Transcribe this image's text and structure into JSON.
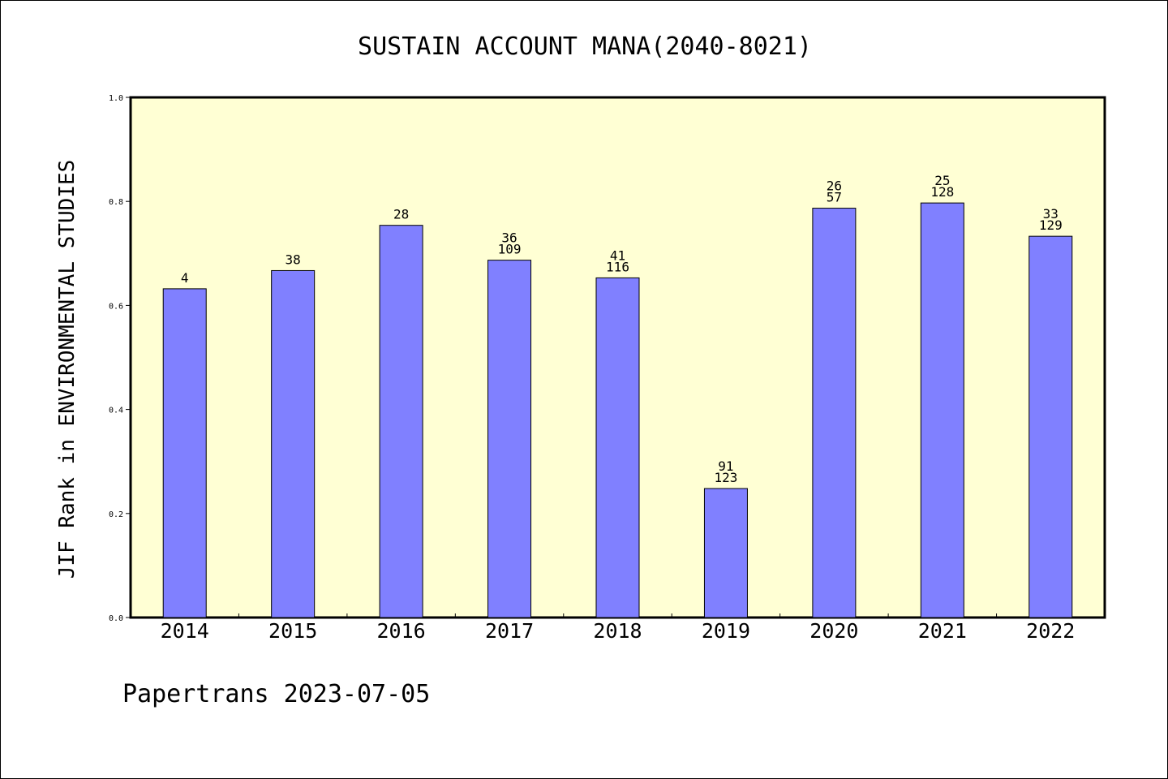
{
  "chart_data": {
    "type": "bar",
    "title": "SUSTAIN ACCOUNT MANA(2040-8021)",
    "xlabel": "",
    "ylabel": "JIF Rank in ENVIRONMENTAL STUDIES",
    "categories": [
      "2014",
      "2015",
      "2016",
      "2017",
      "2018",
      "2019",
      "2020",
      "2021",
      "2022"
    ],
    "values": [
      0.632,
      0.667,
      0.754,
      0.687,
      0.653,
      0.248,
      0.787,
      0.797,
      0.733
    ],
    "labels": [
      [
        "4"
      ],
      [
        "38"
      ],
      [
        "28"
      ],
      [
        "36",
        "109"
      ],
      [
        "41",
        "116"
      ],
      [
        "91",
        "123"
      ],
      [
        "26",
        "57"
      ],
      [
        "25",
        "128"
      ],
      [
        "33",
        "129"
      ]
    ],
    "yticks": [
      "0.0",
      "0.2",
      "0.4",
      "0.6",
      "0.8",
      "1.0"
    ],
    "ylim": [
      0,
      1.0
    ],
    "grid": false,
    "legend": "none",
    "colors": {
      "plot_background": "#ffffd4",
      "bar_fill": "#8080ff",
      "bar_stroke": "#000000"
    }
  },
  "footer": "Papertrans 2023-07-05"
}
